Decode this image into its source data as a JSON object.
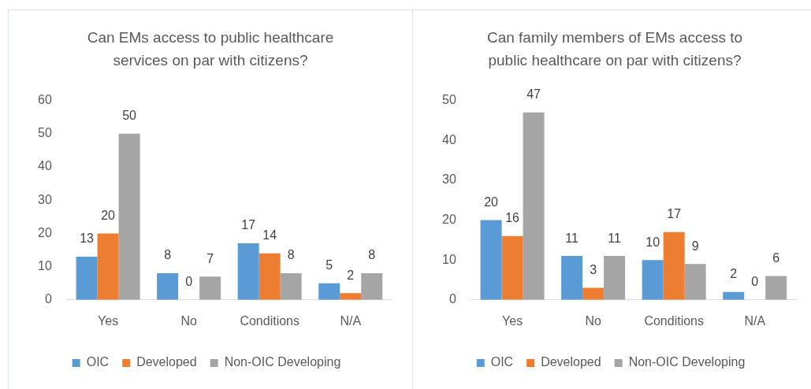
{
  "chart_data": [
    {
      "type": "bar",
      "title": "Can EMs access to public healthcare services on par with citizens?",
      "categories": [
        "Yes",
        "No",
        "Conditions",
        "N/A"
      ],
      "series": [
        {
          "name": "OIC",
          "color": "#5b9bd5",
          "values": [
            13,
            8,
            17,
            5
          ]
        },
        {
          "name": "Developed",
          "color": "#ed7d31",
          "values": [
            20,
            0,
            14,
            2
          ]
        },
        {
          "name": "Non-OIC Developing",
          "color": "#a5a5a5",
          "values": [
            50,
            7,
            8,
            8
          ]
        }
      ],
      "ylim": [
        0,
        60
      ],
      "yticks": [
        0,
        10,
        20,
        30,
        40,
        50,
        60
      ],
      "data_labels": true,
      "legend": "bottom",
      "grid": false
    },
    {
      "type": "bar",
      "title": "Can family members of EMs access to public healthcare on par with citizens?",
      "categories": [
        "Yes",
        "No",
        "Conditions",
        "N/A"
      ],
      "series": [
        {
          "name": "OIC",
          "color": "#5b9bd5",
          "values": [
            20,
            11,
            10,
            2
          ]
        },
        {
          "name": "Developed",
          "color": "#ed7d31",
          "values": [
            16,
            3,
            17,
            0
          ]
        },
        {
          "name": "Non-OIC Developing",
          "color": "#a5a5a5",
          "values": [
            47,
            11,
            9,
            6
          ]
        }
      ],
      "ylim": [
        0,
        50
      ],
      "yticks": [
        0,
        10,
        20,
        30,
        40,
        50
      ],
      "data_labels": true,
      "legend": "bottom",
      "grid": false
    }
  ]
}
